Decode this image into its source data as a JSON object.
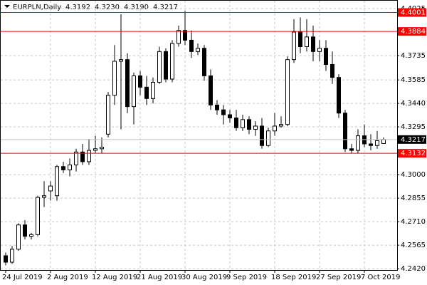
{
  "chart_data": {
    "type": "candlestick",
    "title": "EURPLN,Daily",
    "last_ohlc_labels": [
      "4.3192",
      "4.3230",
      "4.3190",
      "4.3217"
    ],
    "categories": [
      "24 Jul 2019",
      null,
      null,
      null,
      null,
      null,
      null,
      "2 Aug 2019",
      null,
      null,
      null,
      null,
      null,
      null,
      "12 Aug 2019",
      null,
      null,
      null,
      null,
      null,
      null,
      "21 Aug 2019",
      null,
      null,
      null,
      null,
      null,
      null,
      "30 Aug 2019",
      null,
      null,
      null,
      null,
      null,
      null,
      "9 Sep 2019",
      null,
      null,
      null,
      null,
      null,
      null,
      "18 Sep 2019",
      null,
      null,
      null,
      null,
      null,
      null,
      "27 Sep 2019",
      null,
      null,
      null,
      null,
      null,
      null,
      "7 Oct 2019",
      null,
      null,
      null
    ],
    "open": [
      4.25,
      4.246,
      4.254,
      4.269,
      4.262,
      4.263,
      4.286,
      4.29,
      4.287,
      4.305,
      4.303,
      4.306,
      4.314,
      4.308,
      4.315,
      4.316,
      4.325,
      4.349,
      4.37,
      4.371,
      4.342,
      4.361,
      4.354,
      4.347,
      4.357,
      4.376,
      4.359,
      4.381,
      4.389,
      4.383,
      4.376,
      4.378,
      4.361,
      4.343,
      4.34,
      4.337,
      4.335,
      4.329,
      4.334,
      4.328,
      4.33,
      4.318,
      4.327,
      4.33,
      4.331,
      4.371,
      4.388,
      4.379,
      4.385,
      4.376,
      4.378,
      4.368,
      4.36,
      4.338,
      4.316,
      4.315,
      4.324,
      4.319,
      4.318,
      4.3192
    ],
    "high": [
      4.252,
      4.256,
      4.27,
      4.272,
      4.264,
      4.287,
      4.296,
      4.296,
      4.306,
      4.308,
      4.31,
      4.316,
      4.319,
      4.322,
      4.324,
      4.323,
      4.351,
      4.38,
      4.399,
      4.375,
      4.363,
      4.364,
      4.361,
      4.36,
      4.379,
      4.378,
      4.383,
      4.392,
      4.401,
      4.389,
      4.381,
      4.38,
      4.365,
      4.346,
      4.343,
      4.34,
      4.34,
      4.337,
      4.336,
      4.333,
      4.335,
      4.329,
      4.338,
      4.336,
      4.373,
      4.396,
      4.397,
      4.396,
      4.392,
      4.383,
      4.383,
      4.376,
      4.362,
      4.34,
      4.319,
      4.328,
      4.331,
      4.325,
      4.327,
      4.323
    ],
    "low": [
      4.244,
      4.245,
      4.253,
      4.26,
      4.26,
      4.262,
      4.28,
      4.284,
      4.284,
      4.301,
      4.299,
      4.302,
      4.306,
      4.306,
      4.313,
      4.313,
      4.323,
      4.343,
      4.328,
      4.338,
      4.331,
      4.349,
      4.343,
      4.344,
      4.356,
      4.357,
      4.357,
      4.379,
      4.38,
      4.372,
      4.374,
      4.358,
      4.34,
      4.337,
      4.331,
      4.332,
      4.327,
      4.327,
      4.325,
      4.324,
      4.316,
      4.317,
      4.324,
      4.329,
      4.33,
      4.369,
      4.375,
      4.376,
      4.37,
      4.37,
      4.364,
      4.356,
      4.335,
      4.314,
      4.313,
      4.313,
      4.317,
      4.315,
      4.316,
      4.319
    ],
    "close": [
      4.246,
      4.254,
      4.269,
      4.262,
      4.263,
      4.286,
      4.287,
      4.293,
      4.305,
      4.303,
      4.306,
      4.314,
      4.308,
      4.315,
      4.316,
      4.317,
      4.349,
      4.37,
      4.371,
      4.342,
      4.361,
      4.354,
      4.347,
      4.357,
      4.376,
      4.359,
      4.381,
      4.389,
      4.383,
      4.376,
      4.378,
      4.361,
      4.343,
      4.34,
      4.337,
      4.335,
      4.329,
      4.334,
      4.328,
      4.33,
      4.318,
      4.327,
      4.33,
      4.331,
      4.371,
      4.388,
      4.379,
      4.385,
      4.376,
      4.378,
      4.368,
      4.36,
      4.338,
      4.316,
      4.315,
      4.324,
      4.319,
      4.318,
      4.321,
      4.3217
    ],
    "ylim": [
      4.2416,
      4.4056
    ],
    "yticks": [
      4.4025,
      4.3735,
      4.3585,
      {
        "value": 4.344,
        "label": "4.3440"
      },
      4.3295,
      {
        "value": 4.3,
        "label": "4.3000"
      },
      4.2855,
      {
        "value": 4.271,
        "label": "4.2710"
      },
      4.2565,
      {
        "value": 4.242,
        "label": "4.2420"
      }
    ],
    "levels": [
      {
        "value": 4.4001,
        "color": "#ff0000"
      },
      {
        "value": 4.3884,
        "color": "#ff0000"
      },
      {
        "value": 4.3132,
        "color": "#ff0000"
      }
    ],
    "current_price": {
      "value": 4.3217,
      "color": "#000000"
    },
    "grid": true
  }
}
